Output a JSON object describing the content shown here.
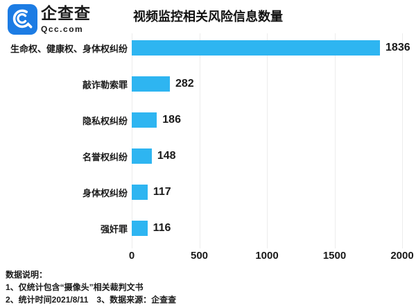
{
  "logo": {
    "name_cn": "企查查",
    "name_en": "Qcc.com"
  },
  "chart_data": {
    "type": "bar",
    "orientation": "horizontal",
    "title": "视频监控相关风险信息数量",
    "categories": [
      "生命权、健康权、身体权纠纷",
      "敲诈勒索罪",
      "隐私权纠纷",
      "名誉权纠纷",
      "身体权纠纷",
      "强奸罪"
    ],
    "values": [
      1836,
      282,
      186,
      148,
      117,
      116
    ],
    "xlabel": "",
    "ylabel": "",
    "xlim": [
      0,
      2000
    ],
    "xticks": [
      0,
      500,
      1000,
      1500,
      2000
    ],
    "grid": true,
    "legend": false,
    "bar_color": "#2EB5F1"
  },
  "notes": {
    "heading": "数据说明：",
    "line1": "1、仅统计包含“摄像头”相关裁判文书",
    "line2": "2、统计时间2021/8/11　3、数据来源：企查查"
  },
  "colors": {
    "logo_blue": "#1C7CE4",
    "bar": "#2EB5F1",
    "text": "#1A1A1A",
    "grid": "#ECECEC"
  }
}
